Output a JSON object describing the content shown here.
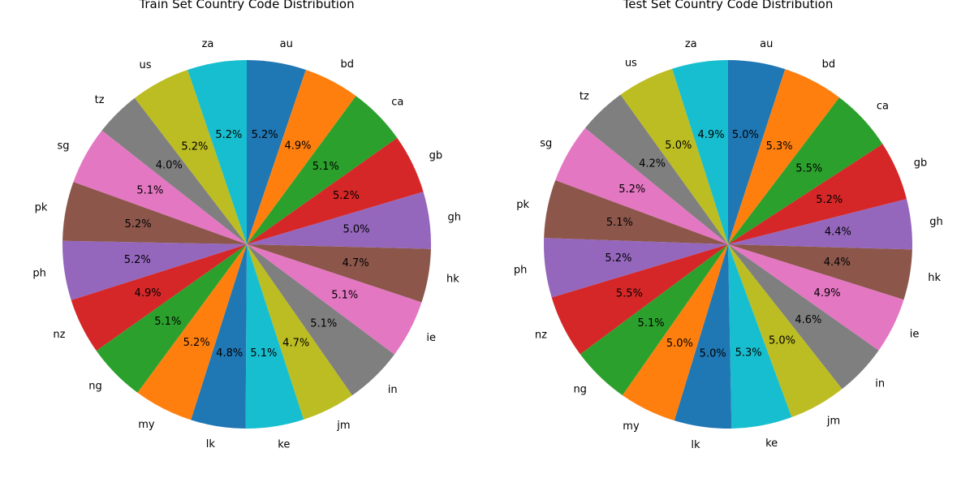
{
  "chart_data": [
    {
      "type": "pie",
      "title": "Train Set Country Code Distribution",
      "start_angle_deg": 90,
      "direction": "clockwise",
      "labels": [
        "au",
        "bd",
        "ca",
        "gb",
        "gh",
        "hk",
        "ie",
        "in",
        "jm",
        "ke",
        "lk",
        "my",
        "ng",
        "nz",
        "ph",
        "pk",
        "sg",
        "tz",
        "us",
        "za"
      ],
      "values": [
        5.2,
        4.9,
        5.1,
        5.2,
        5.0,
        4.7,
        5.1,
        5.1,
        4.7,
        5.1,
        4.8,
        5.2,
        5.1,
        4.9,
        5.2,
        5.2,
        5.1,
        4.0,
        5.2,
        5.2
      ],
      "value_labels": [
        "5.2%",
        "4.9%",
        "5.1%",
        "5.2%",
        "5.0%",
        "4.7%",
        "5.1%",
        "5.1%",
        "4.7%",
        "5.1%",
        "4.8%",
        "5.2%",
        "5.1%",
        "4.9%",
        "5.2%",
        "5.2%",
        "5.1%",
        "4.0%",
        "5.2%",
        "5.2%"
      ],
      "colors": [
        "#1f77b4",
        "#ff7f0e",
        "#2ca02c",
        "#d62728",
        "#9467bd",
        "#8c564b",
        "#e377c2",
        "#7f7f7f",
        "#bcbd22",
        "#17becf",
        "#1f77b4",
        "#ff7f0e",
        "#2ca02c",
        "#d62728",
        "#9467bd",
        "#8c564b",
        "#e377c2",
        "#7f7f7f",
        "#bcbd22",
        "#17becf"
      ]
    },
    {
      "type": "pie",
      "title": "Test Set Country Code Distribution",
      "start_angle_deg": 90,
      "direction": "clockwise",
      "labels": [
        "au",
        "bd",
        "ca",
        "gb",
        "gh",
        "hk",
        "ie",
        "in",
        "jm",
        "ke",
        "lk",
        "my",
        "ng",
        "nz",
        "ph",
        "pk",
        "sg",
        "tz",
        "us",
        "za"
      ],
      "values": [
        5.0,
        5.3,
        5.5,
        5.2,
        4.4,
        4.4,
        4.9,
        4.6,
        5.0,
        5.3,
        5.0,
        5.0,
        5.1,
        5.5,
        5.2,
        5.1,
        5.2,
        4.2,
        5.0,
        4.9
      ],
      "value_labels": [
        "5.0%",
        "5.3%",
        "5.5%",
        "5.2%",
        "4.4%",
        "4.4%",
        "4.9%",
        "4.6%",
        "5.0%",
        "5.3%",
        "5.0%",
        "5.0%",
        "5.1%",
        "5.5%",
        "5.2%",
        "5.1%",
        "5.2%",
        "4.2%",
        "5.0%",
        "4.9%"
      ],
      "colors": [
        "#1f77b4",
        "#ff7f0e",
        "#2ca02c",
        "#d62728",
        "#9467bd",
        "#8c564b",
        "#e377c2",
        "#7f7f7f",
        "#bcbd22",
        "#17becf",
        "#1f77b4",
        "#ff7f0e",
        "#2ca02c",
        "#d62728",
        "#9467bd",
        "#8c564b",
        "#e377c2",
        "#7f7f7f",
        "#bcbd22",
        "#17becf"
      ]
    }
  ]
}
